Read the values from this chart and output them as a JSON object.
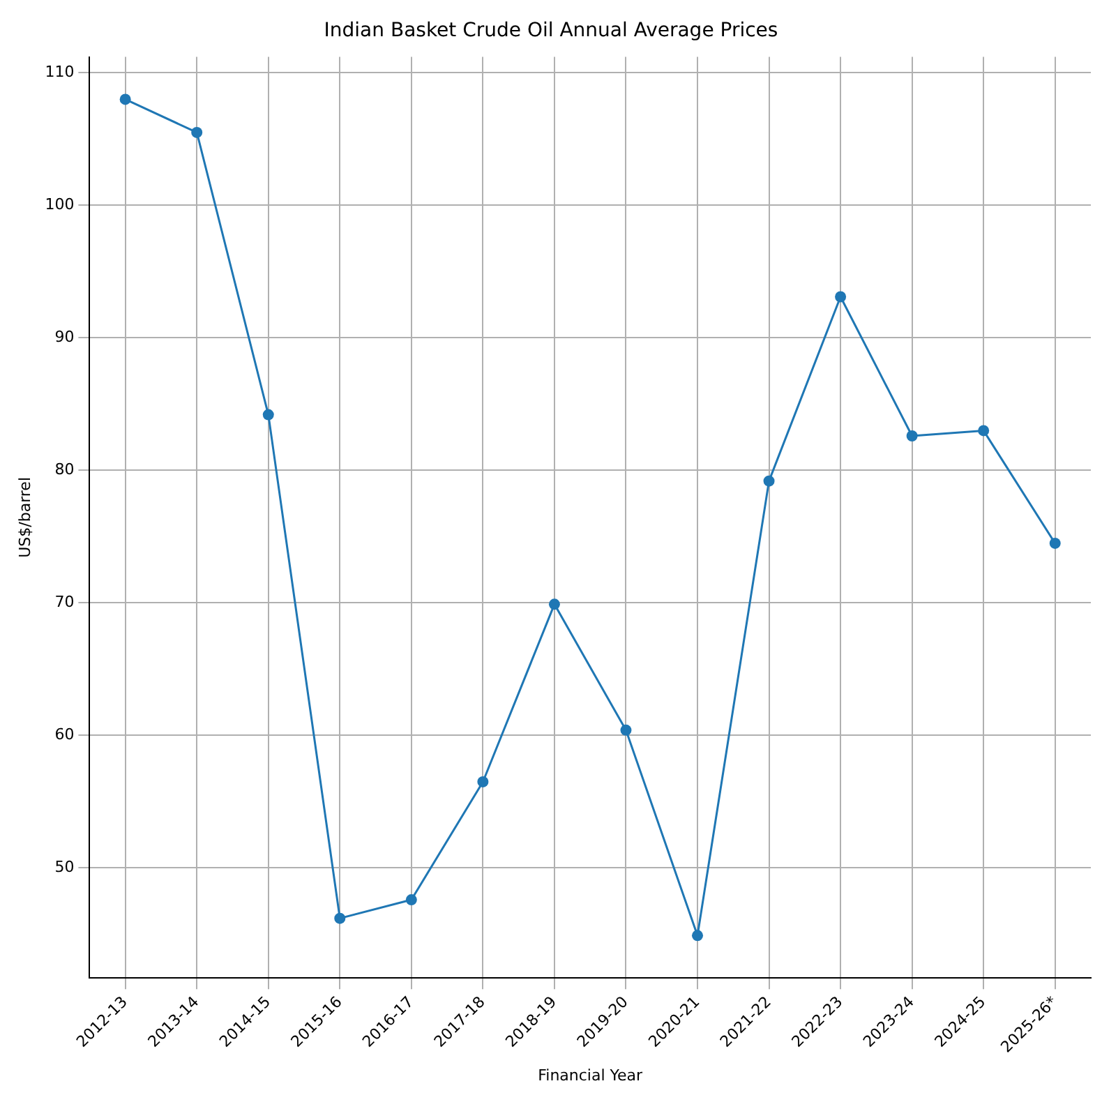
{
  "chart_data": {
    "type": "line",
    "title": "Indian Basket Crude Oil Annual Average Prices",
    "xlabel": "Financial Year",
    "ylabel": "US$/barrel",
    "categories": [
      "2012-13",
      "2013-14",
      "2014-15",
      "2015-16",
      "2016-17",
      "2017-18",
      "2018-19",
      "2019-20",
      "2020-21",
      "2021-22",
      "2022-23",
      "2023-24",
      "2024-25",
      "2025-26*"
    ],
    "series": [
      {
        "color": "#1f77b4",
        "values": [
          108.0,
          105.5,
          84.2,
          46.2,
          47.6,
          56.5,
          69.9,
          60.4,
          44.9,
          79.2,
          93.1,
          82.6,
          83.0,
          74.5
        ]
      }
    ],
    "ylim": [
      41.7,
      111.2
    ],
    "yticks": [
      50,
      60,
      70,
      80,
      90,
      100,
      110
    ],
    "grid": true,
    "marker": "circle",
    "line_style": "solid",
    "legend": false
  }
}
